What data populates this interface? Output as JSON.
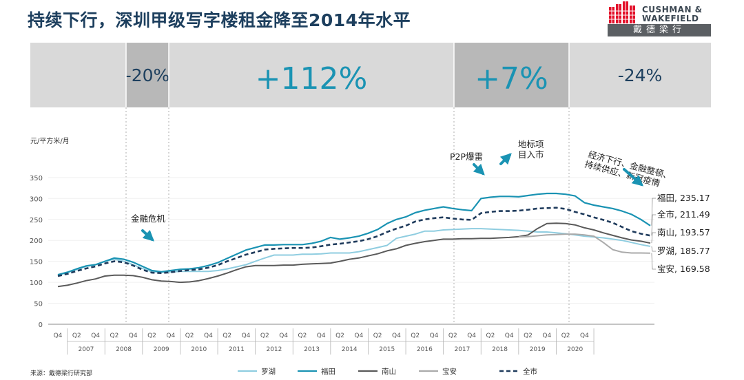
{
  "title": "持续下行，深圳甲级写字楼租金降至2014年水平",
  "logo": {
    "line1": "CUSHMAN &",
    "line2": "WAKEFIELD",
    "chinese": "戴德梁行"
  },
  "source": "来源：戴德梁行研究部",
  "colors": {
    "luohu": "#8fcde0",
    "futian": "#1a93b3",
    "nanshan": "#5a5a5a",
    "baoan": "#aaaaaa",
    "all": "#1f3b5c",
    "band": "#d9d9d9",
    "band_dark": "#b8b8b8",
    "text_teal": "#1a93b3",
    "text_dark": "#1d3f5e"
  },
  "chart_data": {
    "type": "line",
    "ylabel": "元/平方米/月",
    "ylim": [
      0,
      350
    ],
    "yticks": [
      0,
      50,
      100,
      150,
      200,
      250,
      300,
      350
    ],
    "quarter_labels": [
      "Q4",
      "Q2",
      "Q4",
      "Q2",
      "Q4",
      "Q2",
      "Q4",
      "Q2",
      "Q4",
      "Q2",
      "Q4",
      "Q2",
      "Q4",
      "Q2",
      "Q4",
      "Q2",
      "Q4",
      "Q2",
      "Q4",
      "Q2",
      "Q4",
      "Q2",
      "Q4",
      "Q2",
      "Q4",
      "Q2",
      "Q4",
      "Q2",
      "Q4"
    ],
    "years": [
      "2007",
      "2008",
      "2009",
      "2010",
      "2011",
      "2012",
      "2013",
      "2014",
      "2015",
      "2016",
      "2017",
      "2018",
      "2019",
      "2020"
    ],
    "periods": [
      {
        "label": "-20%",
        "start": 4,
        "end": 8,
        "dark": true
      },
      {
        "label": "+112%",
        "start": 8,
        "end": 40,
        "dark": false
      },
      {
        "label": "+7%",
        "start": 40,
        "end": 48,
        "dark": true
      },
      {
        "label": "-24%",
        "start": 48,
        "end": 56,
        "dark": false
      }
    ],
    "series": [
      {
        "key": "luohu",
        "name": "罗湖",
        "end_label": "罗湖, 185.77",
        "values": [
          117,
          123,
          130,
          138,
          142,
          150,
          155,
          150,
          142,
          133,
          125,
          124,
          125,
          126,
          126,
          126,
          126,
          128,
          132,
          137,
          142,
          150,
          158,
          165,
          165,
          165,
          167,
          167,
          168,
          170,
          170,
          170,
          173,
          178,
          183,
          188,
          205,
          210,
          215,
          222,
          222,
          225,
          226,
          227,
          228,
          228,
          227,
          226,
          225,
          224,
          222,
          220,
          220,
          218,
          216,
          213,
          210,
          208,
          206,
          203,
          200,
          195,
          190,
          185.77
        ]
      },
      {
        "key": "futian",
        "name": "福田",
        "end_label": "福田, 235.17",
        "values": [
          118,
          124,
          132,
          139,
          142,
          150,
          158,
          155,
          148,
          138,
          128,
          125,
          128,
          131,
          132,
          135,
          140,
          147,
          157,
          167,
          177,
          183,
          189,
          189,
          190,
          190,
          190,
          193,
          198,
          207,
          203,
          206,
          210,
          217,
          226,
          240,
          250,
          256,
          266,
          272,
          276,
          280,
          276,
          273,
          271,
          300,
          303,
          305,
          305,
          304,
          307,
          310,
          312,
          312,
          310,
          306,
          290,
          284,
          280,
          276,
          270,
          262,
          250,
          235.17
        ]
      },
      {
        "key": "nanshan",
        "name": "南山",
        "end_label": "南山, 193.57",
        "values": [
          90,
          93,
          98,
          104,
          108,
          115,
          117,
          117,
          116,
          112,
          106,
          103,
          102,
          100,
          101,
          104,
          109,
          115,
          122,
          130,
          137,
          140,
          140,
          140,
          141,
          141,
          143,
          144,
          145,
          146,
          150,
          155,
          158,
          163,
          168,
          175,
          180,
          188,
          193,
          197,
          200,
          203,
          203,
          204,
          204,
          205,
          205,
          206,
          207,
          209,
          213,
          228,
          240,
          241,
          240,
          237,
          230,
          225,
          218,
          212,
          206,
          201,
          198,
          193.57
        ]
      },
      {
        "key": "baoan",
        "name": "宝安",
        "end_label": "宝安, 169.58",
        "values": [
          null,
          null,
          null,
          null,
          null,
          null,
          null,
          null,
          null,
          null,
          null,
          null,
          null,
          null,
          null,
          null,
          null,
          null,
          null,
          null,
          null,
          null,
          null,
          null,
          null,
          null,
          null,
          null,
          null,
          null,
          null,
          null,
          null,
          null,
          null,
          null,
          null,
          null,
          null,
          null,
          null,
          null,
          null,
          null,
          null,
          null,
          null,
          null,
          null,
          208,
          209,
          211,
          213,
          214,
          215,
          215,
          213,
          210,
          195,
          178,
          172,
          170,
          170,
          169.58
        ]
      },
      {
        "key": "all",
        "name": "全市",
        "end_label": "全市, 211.49",
        "dashed": true,
        "values": [
          115,
          120,
          127,
          133,
          138,
          145,
          150,
          148,
          140,
          130,
          123,
          122,
          124,
          127,
          129,
          131,
          135,
          141,
          150,
          158,
          166,
          172,
          178,
          180,
          181,
          182,
          182,
          183,
          186,
          190,
          192,
          195,
          198,
          203,
          210,
          220,
          228,
          235,
          245,
          250,
          253,
          255,
          252,
          250,
          249,
          265,
          268,
          270,
          270,
          271,
          273,
          276,
          277,
          278,
          275,
          268,
          262,
          255,
          249,
          242,
          232,
          222,
          216,
          211.49
        ]
      }
    ],
    "annotations": [
      {
        "text": "金融危机"
      },
      {
        "text": "P2P爆雷"
      },
      {
        "line1": "地标项",
        "line2": "目入市"
      },
      {
        "line1": "经济下行、金融整顿、",
        "line2": "持续供应、新冠疫情"
      }
    ]
  }
}
